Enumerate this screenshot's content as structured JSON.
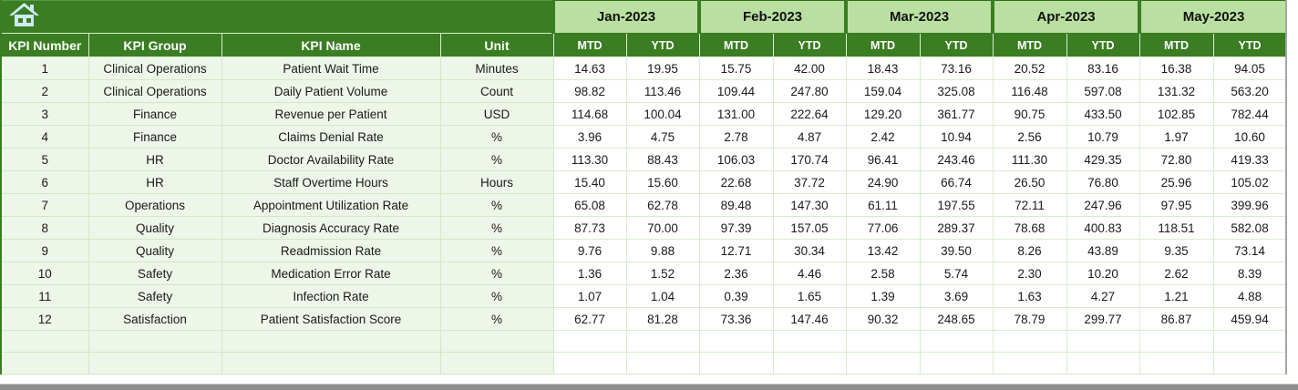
{
  "table": {
    "months": [
      "Jan-2023",
      "Feb-2023",
      "Mar-2023",
      "Apr-2023",
      "May-2023"
    ],
    "sub_headers": [
      "MTD",
      "YTD"
    ],
    "columns": [
      "KPI Number",
      "KPI Group",
      "KPI Name",
      "Unit"
    ],
    "rows": [
      {
        "number": "1",
        "group": "Clinical Operations",
        "name": "Patient Wait Time",
        "unit": "Minutes",
        "values": [
          "14.63",
          "19.95",
          "15.75",
          "42.00",
          "18.43",
          "73.16",
          "20.52",
          "83.16",
          "16.38",
          "94.05"
        ]
      },
      {
        "number": "2",
        "group": "Clinical Operations",
        "name": "Daily Patient Volume",
        "unit": "Count",
        "values": [
          "98.82",
          "113.46",
          "109.44",
          "247.80",
          "159.04",
          "325.08",
          "116.48",
          "597.08",
          "131.32",
          "563.20"
        ]
      },
      {
        "number": "3",
        "group": "Finance",
        "name": "Revenue per Patient",
        "unit": "USD",
        "values": [
          "114.68",
          "100.04",
          "131.00",
          "222.64",
          "129.20",
          "361.77",
          "90.75",
          "433.50",
          "102.85",
          "782.44"
        ]
      },
      {
        "number": "4",
        "group": "Finance",
        "name": "Claims Denial Rate",
        "unit": "%",
        "values": [
          "3.96",
          "4.75",
          "2.78",
          "4.87",
          "2.42",
          "10.94",
          "2.56",
          "10.79",
          "1.97",
          "10.60"
        ]
      },
      {
        "number": "5",
        "group": "HR",
        "name": "Doctor Availability Rate",
        "unit": "%",
        "values": [
          "113.30",
          "88.43",
          "106.03",
          "170.74",
          "96.41",
          "243.46",
          "111.30",
          "429.35",
          "72.80",
          "419.33"
        ]
      },
      {
        "number": "6",
        "group": "HR",
        "name": "Staff Overtime Hours",
        "unit": "Hours",
        "values": [
          "15.40",
          "15.60",
          "22.68",
          "37.72",
          "24.90",
          "66.74",
          "26.50",
          "76.80",
          "25.96",
          "105.02"
        ]
      },
      {
        "number": "7",
        "group": "Operations",
        "name": "Appointment Utilization Rate",
        "unit": "%",
        "values": [
          "65.08",
          "62.78",
          "89.48",
          "147.30",
          "61.11",
          "197.55",
          "72.11",
          "247.96",
          "97.95",
          "399.96"
        ]
      },
      {
        "number": "8",
        "group": "Quality",
        "name": "Diagnosis Accuracy Rate",
        "unit": "%",
        "values": [
          "87.73",
          "70.00",
          "97.39",
          "157.05",
          "77.06",
          "289.37",
          "78.68",
          "400.83",
          "118.51",
          "582.08"
        ]
      },
      {
        "number": "9",
        "group": "Quality",
        "name": "Readmission Rate",
        "unit": "%",
        "values": [
          "9.76",
          "9.88",
          "12.71",
          "30.34",
          "13.42",
          "39.50",
          "8.26",
          "43.89",
          "9.35",
          "73.14"
        ]
      },
      {
        "number": "10",
        "group": "Safety",
        "name": "Medication Error Rate",
        "unit": "%",
        "values": [
          "1.36",
          "1.52",
          "2.36",
          "4.46",
          "2.58",
          "5.74",
          "2.30",
          "10.20",
          "2.62",
          "8.39"
        ]
      },
      {
        "number": "11",
        "group": "Safety",
        "name": "Infection Rate",
        "unit": "%",
        "values": [
          "1.07",
          "1.04",
          "0.39",
          "1.65",
          "1.39",
          "3.69",
          "1.63",
          "4.27",
          "1.21",
          "4.88"
        ]
      },
      {
        "number": "12",
        "group": "Satisfaction",
        "name": "Patient Satisfaction Score",
        "unit": "%",
        "values": [
          "62.77",
          "81.28",
          "73.36",
          "147.46",
          "90.32",
          "248.65",
          "78.79",
          "299.77",
          "86.87",
          "459.94"
        ]
      }
    ],
    "empty_row_count": 2
  },
  "icons": {
    "home": "home-icon"
  },
  "colors": {
    "header_dark_green": "#3a7d22",
    "month_light_green": "#b9e0a0",
    "row_light_green": "#edf6e8",
    "grid_border_green": "#d3e8c6",
    "home_icon_blue": "#cde9f4",
    "scrollbar_gray": "#8f8f8f"
  }
}
